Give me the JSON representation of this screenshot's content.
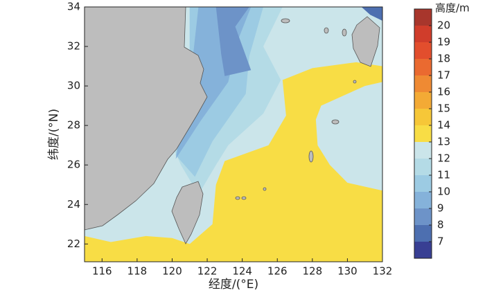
{
  "chart_data": {
    "type": "contour",
    "xlabel": "经度/(°E)",
    "ylabel": "纬度/(°N)",
    "xlim": [
      115.0,
      132
    ],
    "ylim": [
      21.1,
      34
    ],
    "xticks": [
      116,
      118,
      120,
      122,
      124,
      126,
      128,
      130,
      132
    ],
    "yticks": [
      22,
      24,
      26,
      28,
      30,
      32,
      34
    ],
    "colorbar": {
      "title": "高度/m",
      "bounds": [
        6,
        7,
        8,
        9,
        10,
        11,
        12,
        13,
        14,
        15,
        16,
        17,
        18,
        19,
        20,
        21
      ],
      "ticks": [
        7,
        8,
        9,
        10,
        11,
        12,
        13,
        14,
        15,
        16,
        17,
        18,
        19,
        20
      ],
      "colors": [
        "#383f93",
        "#4d6fb0",
        "#6d93c8",
        "#85b2da",
        "#9ccbe3",
        "#b4dbe6",
        "#cbe5ea",
        "#f8dd45",
        "#f6c738",
        "#f3aa35",
        "#ef8a33",
        "#ea6a30",
        "#e24e2d",
        "#d03d2b",
        "#a8362c"
      ]
    },
    "regions": [
      {
        "level": 12,
        "lon": [
          115.0,
          132,
          132,
          115.0
        ],
        "lat": [
          21.1,
          21.1,
          34,
          34
        ]
      },
      {
        "level": 13,
        "lon": [
          115.0,
          116.5,
          118.5,
          120,
          121,
          122.3,
          122.5,
          123,
          125.5,
          126.5,
          126.3,
          128,
          130.5,
          132,
          132,
          131,
          130,
          128.5,
          128.2,
          128.3,
          129,
          130,
          132,
          132,
          115.0
        ],
        "lat": [
          22.4,
          22.1,
          22.4,
          22.3,
          22.0,
          23.0,
          25.0,
          26.2,
          27.0,
          28.5,
          30.3,
          30.9,
          31.2,
          31.0,
          30.2,
          30.0,
          29.6,
          29.0,
          28.3,
          27.0,
          26.0,
          25.1,
          24.7,
          21.1,
          21.1
        ]
      },
      {
        "level": 11,
        "lon": [
          121,
          126.3,
          125.2,
          126.2,
          125.2,
          123.2,
          122.5,
          121.5,
          120.5,
          120,
          121,
          121
        ],
        "lat": [
          34,
          34,
          32,
          30.3,
          28.6,
          27.0,
          26.0,
          24.5,
          26,
          27,
          30,
          34
        ]
      },
      {
        "level": 10,
        "lon": [
          121,
          125.2,
          124.4,
          124.2,
          122.3,
          121.3,
          120.2,
          121,
          121
        ],
        "lat": [
          34,
          34,
          31.5,
          29.6,
          27.2,
          25.4,
          26.5,
          30,
          34
        ]
      },
      {
        "level": 9,
        "lon": [
          121.5,
          124.5,
          123.7,
          123.2,
          121.6,
          120.2,
          121,
          121.5
        ],
        "lat": [
          34,
          34,
          32.2,
          30.2,
          28.2,
          26.3,
          30,
          34
        ]
      },
      {
        "level": 8,
        "lon": [
          122.5,
          124.4,
          123.6,
          124.5,
          123.0,
          122.8,
          122.5
        ],
        "lat": [
          34,
          34,
          33.0,
          30.8,
          30.5,
          31.6,
          34
        ]
      },
      {
        "level": 7,
        "lon": [
          130.8,
          132,
          132,
          131.3
        ],
        "lat": [
          34,
          34,
          33.3,
          33.6
        ]
      }
    ]
  }
}
